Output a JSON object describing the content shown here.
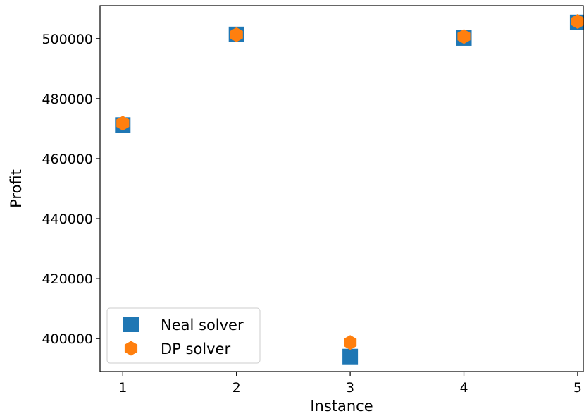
{
  "chart_data": {
    "type": "scatter",
    "xlabel": "Instance",
    "ylabel": "Profit",
    "x_ticks": [
      "1",
      "2",
      "3",
      "4",
      "5"
    ],
    "y_ticks": [
      "400000",
      "420000",
      "440000",
      "460000",
      "480000",
      "500000"
    ],
    "xlim": [
      0.8,
      5.05
    ],
    "ylim": [
      389000,
      511000
    ],
    "grid": false,
    "legend_position": "lower-left",
    "series": [
      {
        "name": "Neal solver",
        "marker": "square",
        "color": "#1f77b4",
        "points": [
          {
            "x": 1,
            "y": 471200
          },
          {
            "x": 2,
            "y": 501400
          },
          {
            "x": 3,
            "y": 394000
          },
          {
            "x": 4,
            "y": 500200
          },
          {
            "x": 5,
            "y": 505400
          }
        ]
      },
      {
        "name": "DP solver",
        "marker": "hexagon",
        "color": "#ff7f0e",
        "points": [
          {
            "x": 1,
            "y": 471800
          },
          {
            "x": 2,
            "y": 501300
          },
          {
            "x": 3,
            "y": 398700
          },
          {
            "x": 4,
            "y": 500700
          },
          {
            "x": 5,
            "y": 505700
          }
        ]
      }
    ]
  }
}
